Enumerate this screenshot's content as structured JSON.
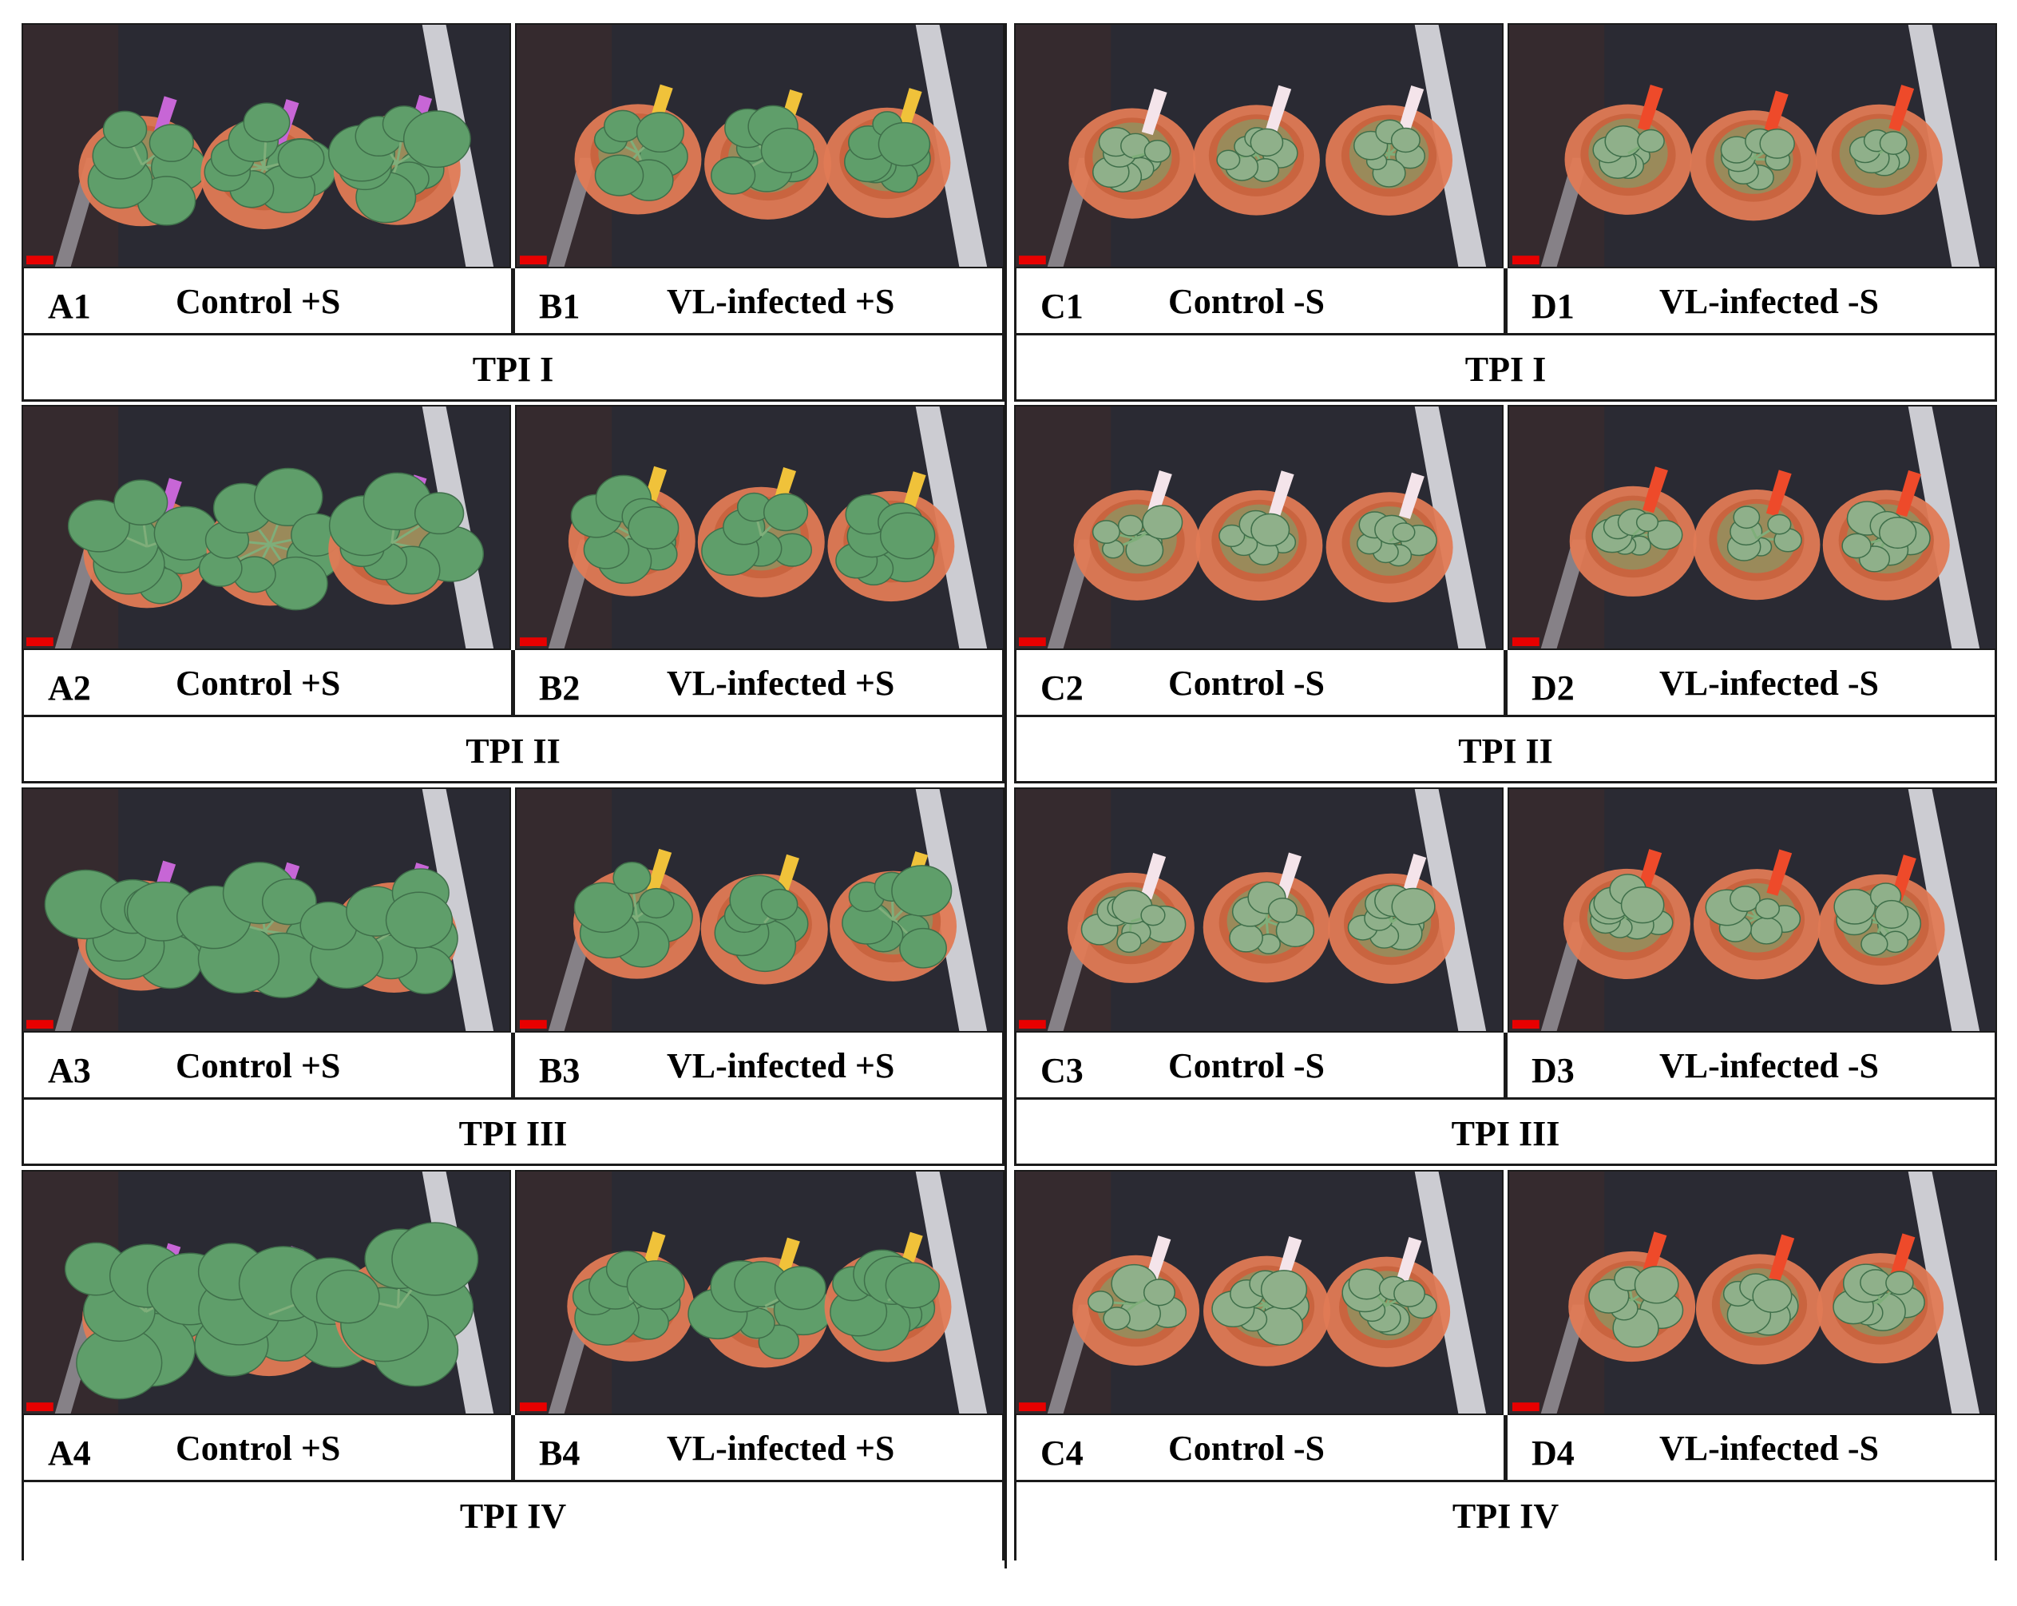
{
  "panels": {
    "A1": {
      "code": "A1",
      "label": "Control +S"
    },
    "B1": {
      "code": "B1",
      "label": "VL-infected +S"
    },
    "C1": {
      "code": "C1",
      "label": "Control -S"
    },
    "D1": {
      "code": "D1",
      "label": "VL-infected -S"
    },
    "A2": {
      "code": "A2",
      "label": "Control +S"
    },
    "B2": {
      "code": "B2",
      "label": "VL-infected +S"
    },
    "C2": {
      "code": "C2",
      "label": "Control -S"
    },
    "D2": {
      "code": "D2",
      "label": "VL-infected -S"
    },
    "A3": {
      "code": "A3",
      "label": "Control +S"
    },
    "B3": {
      "code": "B3",
      "label": "VL-infected +S"
    },
    "C3": {
      "code": "C3",
      "label": "Control -S"
    },
    "D3": {
      "code": "D3",
      "label": "VL-infected -S"
    },
    "A4": {
      "code": "A4",
      "label": "Control +S"
    },
    "B4": {
      "code": "B4",
      "label": "VL-infected +S"
    },
    "C4": {
      "code": "C4",
      "label": "Control -S"
    },
    "D4": {
      "code": "D4",
      "label": "VL-infected -S"
    }
  },
  "tpi": {
    "left": [
      "TPI I",
      "TPI II",
      "TPI III",
      "TPI IV"
    ],
    "right": [
      "TPI I",
      "TPI II",
      "TPI III",
      "TPI IV"
    ]
  },
  "colors": {
    "background": "#2a2a33",
    "pot": "#e07a55",
    "soil": "#9a8a5a",
    "leaf_healthy": "#5f9e6a",
    "leaf_stressed": "#8fb08a",
    "tag_A": "#c766d6",
    "tag_B": "#f0c23a",
    "tag_C": "#f4e4ea",
    "tag_D": "#ee4a2a",
    "scale_bar": "#e80000"
  }
}
